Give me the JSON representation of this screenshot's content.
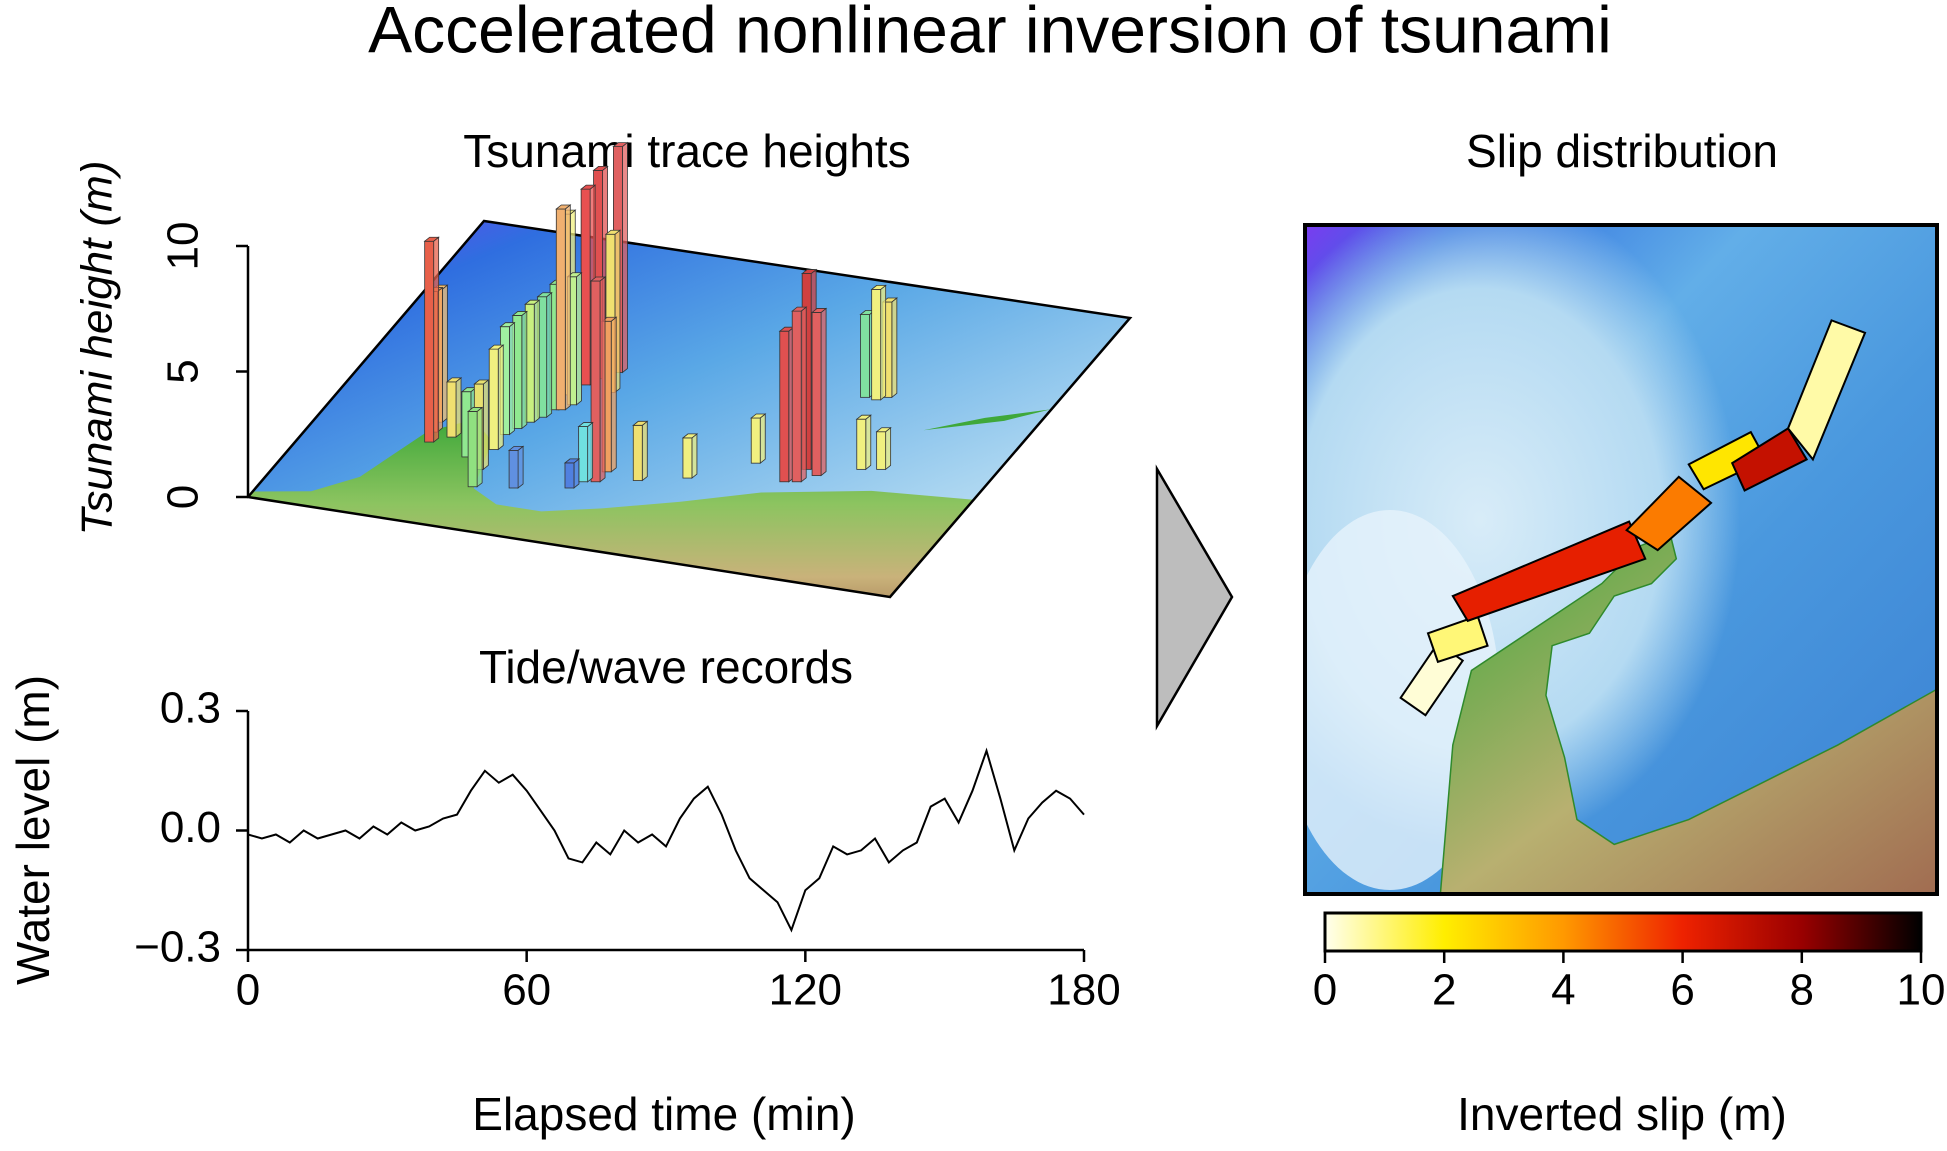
{
  "title": "Accelerated nonlinear inversion of tsunami",
  "chart_data": [
    {
      "type": "bar3d",
      "title": "Tsunami trace heights",
      "y_label": "Tsunami height (m)",
      "zlim": [
        0,
        10
      ],
      "zticks": [
        0,
        5,
        10
      ],
      "values": [
        8.0,
        5.6,
        5.3,
        2.2,
        3.0,
        3.4,
        4.0,
        4.3,
        4.5,
        4.7,
        4.8,
        5.0,
        8.0,
        7.2,
        5.1,
        7.8,
        8.3,
        6.3,
        9.0,
        8.0,
        6.0,
        1.5,
        1.0,
        2.2,
        2.2,
        1.6,
        1.8,
        6.0,
        6.8,
        7.8,
        6.5,
        2.0,
        1.5,
        3.3,
        4.4,
        3.8,
        2.6
      ],
      "colors": [
        "#e8604a",
        "#f0a060",
        "#f5c070",
        "#f0e070",
        "#90e080",
        "#e8e070",
        "#f0f080",
        "#a0f0a0",
        "#90e890",
        "#c8f080",
        "#80e0a0",
        "#90e890",
        "#f0b070",
        "#f0f080",
        "#c0f090",
        "#e85050",
        "#e05050",
        "#f0e070",
        "#e06060",
        "#e06060",
        "#f0a060",
        "#6090e0",
        "#5080e0",
        "#70e0e0",
        "#f0e070",
        "#f0f080",
        "#f0f080",
        "#e05050",
        "#e06060",
        "#d04040",
        "#e06060",
        "#f0f080",
        "#f0f080",
        "#80e0a0",
        "#f0f080",
        "#f0e070",
        "#90e890"
      ]
    },
    {
      "type": "line",
      "title": "Tide/wave records",
      "x_label": "Elapsed time (min)",
      "y_label": "Water level (m)",
      "x": [
        0,
        3,
        6,
        9,
        12,
        15,
        18,
        21,
        24,
        27,
        30,
        33,
        36,
        39,
        42,
        45,
        48,
        51,
        54,
        57,
        60,
        63,
        66,
        69,
        72,
        75,
        78,
        81,
        84,
        87,
        90,
        93,
        96,
        99,
        102,
        105,
        108,
        111,
        114,
        117,
        120,
        123,
        126,
        129,
        132,
        135,
        138,
        141,
        144,
        147,
        150,
        153,
        156,
        159,
        162,
        165,
        168,
        171,
        174,
        177,
        180
      ],
      "values": [
        -0.01,
        -0.02,
        -0.01,
        -0.03,
        0.0,
        -0.02,
        -0.01,
        0.0,
        -0.02,
        0.01,
        -0.01,
        0.02,
        0.0,
        0.01,
        0.03,
        0.04,
        0.1,
        0.15,
        0.12,
        0.14,
        0.1,
        0.05,
        0.0,
        -0.07,
        -0.08,
        -0.03,
        -0.06,
        0.0,
        -0.03,
        -0.01,
        -0.04,
        0.03,
        0.08,
        0.11,
        0.04,
        -0.05,
        -0.12,
        -0.15,
        -0.18,
        -0.25,
        -0.15,
        -0.12,
        -0.04,
        -0.06,
        -0.05,
        -0.02,
        -0.08,
        -0.05,
        -0.03,
        0.06,
        0.08,
        0.02,
        0.1,
        0.2,
        0.08,
        -0.05,
        0.03,
        0.07,
        0.1,
        0.08,
        0.04
      ],
      "color": "#000000",
      "xlim": [
        0,
        180
      ],
      "xticks": [
        0,
        60,
        120,
        180
      ],
      "ylim": [
        -0.3,
        0.3
      ],
      "yticks": [
        {
          "value": -0.3,
          "label": "−0.3"
        },
        {
          "value": 0,
          "label": "0.0"
        },
        0.3
      ]
    },
    {
      "type": "map",
      "title": "Slip distribution",
      "values": [
        0.2,
        1.0,
        6.2,
        4.5,
        2.2,
        7.0,
        0.6
      ],
      "colormap": [
        "#ffffee",
        "#ffee00",
        "#ff9900",
        "#ee2200",
        "#990000",
        "#000000"
      ],
      "colorbar": {
        "label": "Inverted slip (m)",
        "lim": [
          0,
          10
        ],
        "ticks": [
          0,
          2,
          4,
          6,
          8,
          10
        ]
      }
    }
  ]
}
